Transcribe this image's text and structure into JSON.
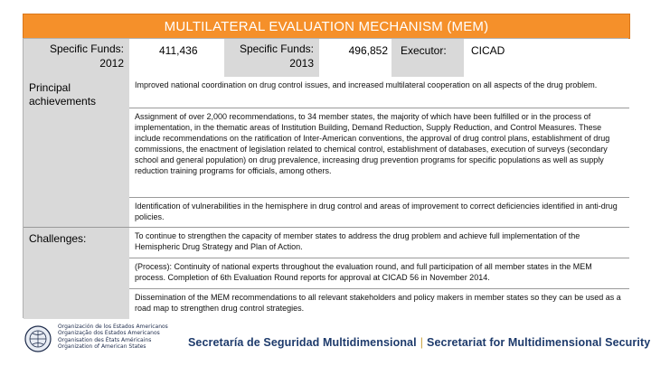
{
  "title": "MULTILATERAL EVALUATION MECHANISM (MEM)",
  "row1": {
    "funds_2012_label": "Specific Funds: 2012",
    "funds_2012_value": "411,436",
    "funds_2013_label": "Specific Funds: 2013",
    "funds_2013_value": "496,852",
    "executor_label": "Executor:",
    "executor_value": "CICAD"
  },
  "achievements": {
    "label": "Principal achievements",
    "items": [
      "Improved national coordination on drug control issues, and increased multilateral cooperation on all aspects of the drug problem.",
      "Assignment of over 2,000 recommendations, to 34 member states, the majority of which have been fulfilled or in the process of implementation, in the thematic areas of Institution Building, Demand Reduction, Supply Reduction, and Control Measures. These include recommendations on the ratification of Inter-American conventions, the approval of drug control plans, establishment of drug commissions, the enactment of legislation related to chemical control, establishment of databases, execution of surveys (secondary school and general population) on drug prevalence, increasing drug prevention programs for specific populations as well as supply reduction training programs for officials, among others.",
      "Identification of vulnerabilities in the hemisphere in drug control and areas of improvement to correct deficiencies identified in anti-drug policies."
    ]
  },
  "challenges": {
    "label": "Challenges:",
    "items": [
      "To continue to strengthen the capacity of member states to address the drug problem and achieve full implementation of the Hemispheric Drug Strategy and Plan of Action.",
      "(Process): Continuity of national experts throughout the evaluation round, and full participation of all member states in the MEM process. Completion of 6th Evaluation Round reports for approval at CICAD 56 in November 2014.",
      "Dissemination of the MEM recommendations to all relevant stakeholders and policy makers in member states so they can be used as a road map to strengthen drug control strategies."
    ]
  },
  "footer": {
    "oas_names": [
      "Organización de los Estados Americanos",
      "Organização dos Estados Americanos",
      "Organisation des États Américains",
      "Organization of American States"
    ],
    "secretariat_es": "Secretaría de Seguridad Multidimensional",
    "separator": "|",
    "secretariat_en": "Secretariat for Multidimensional Security"
  },
  "colors": {
    "title_bar": "#f5902a",
    "gray_cell": "#d9d9d9",
    "footer_text": "#1d3a6b"
  }
}
